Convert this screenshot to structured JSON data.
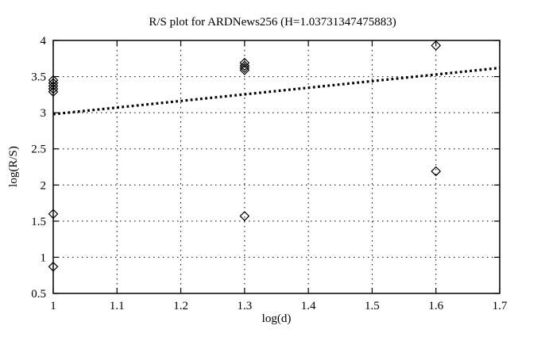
{
  "figure": {
    "background_color": "#ffffff",
    "foreground_color": "#000000"
  },
  "chart_data": {
    "type": "scatter",
    "title": "R/S plot for ARDNews256 (H=1.03731347475883)",
    "xlabel": "log(d)",
    "ylabel": "log(R/S)",
    "xlim": [
      1.0,
      1.7
    ],
    "ylim": [
      0.5,
      4.0
    ],
    "xticks": [
      1.0,
      1.1,
      1.2,
      1.3,
      1.4,
      1.5,
      1.6,
      1.7
    ],
    "xtick_labels": [
      "1",
      "1.1",
      "1.2",
      "1.3",
      "1.4",
      "1.5",
      "1.6",
      "1.7"
    ],
    "yticks": [
      0.5,
      1.0,
      1.5,
      2.0,
      2.5,
      3.0,
      3.5,
      4.0
    ],
    "ytick_labels": [
      "0.5",
      "1",
      "1.5",
      "2",
      "2.5",
      "3",
      "3.5",
      "4"
    ],
    "grid": true,
    "legend": "none",
    "marker": "open-diamond",
    "series": [
      {
        "name": "R/S scatter points",
        "kind": "scatter",
        "points": [
          [
            1.0,
            3.45
          ],
          [
            1.0,
            3.41
          ],
          [
            1.0,
            3.37
          ],
          [
            1.0,
            3.33
          ],
          [
            1.0,
            3.29
          ],
          [
            1.0,
            1.6
          ],
          [
            1.0,
            0.87
          ],
          [
            1.3,
            3.69
          ],
          [
            1.3,
            3.65
          ],
          [
            1.3,
            3.62
          ],
          [
            1.3,
            3.59
          ],
          [
            1.3,
            1.57
          ],
          [
            1.6,
            3.93
          ],
          [
            1.6,
            2.19
          ]
        ]
      },
      {
        "name": "Hurst fit line",
        "kind": "line",
        "style": "thick-dotted",
        "points": [
          [
            1.0,
            2.98
          ],
          [
            1.7,
            3.62
          ]
        ]
      }
    ]
  }
}
